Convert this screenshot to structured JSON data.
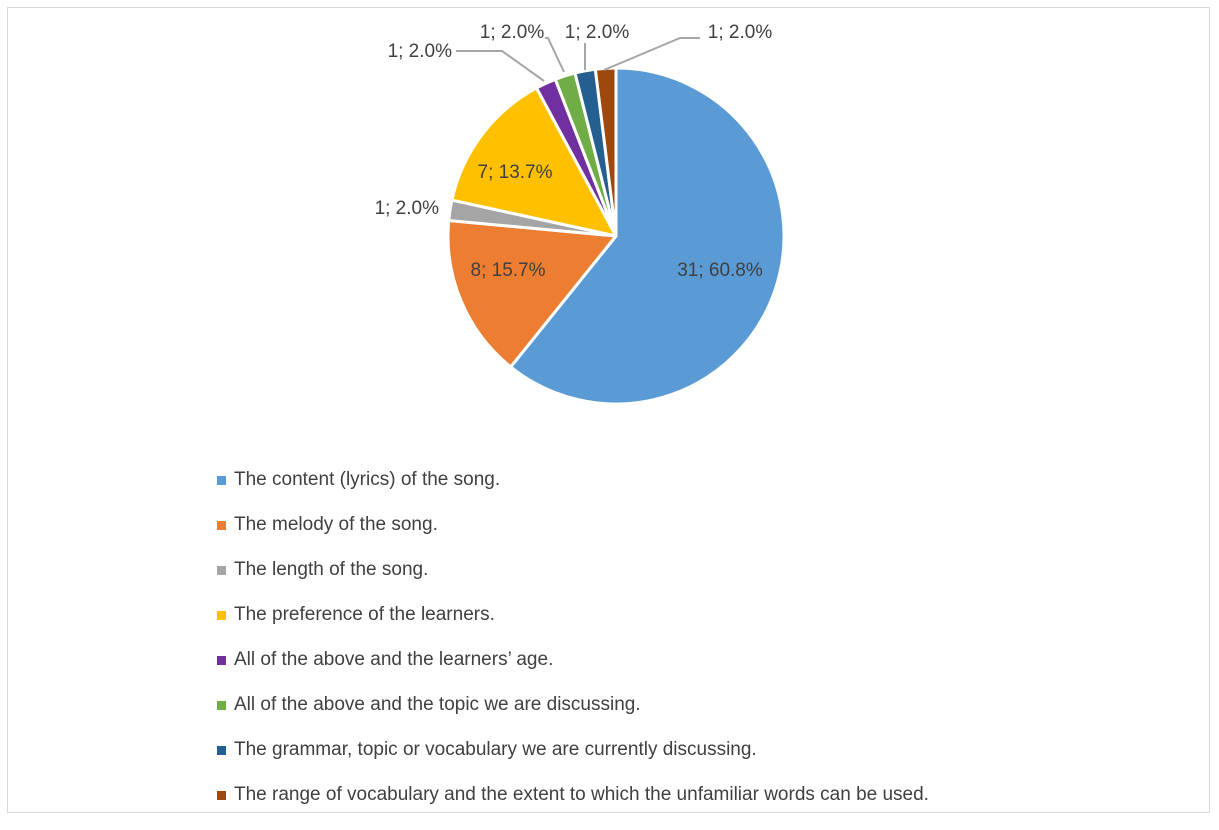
{
  "chart_data": {
    "type": "pie",
    "title": "",
    "legend_position": "bottom",
    "data_label_format": "value; percent",
    "slices": [
      {
        "label": "The content (lyrics) of the song.",
        "value": 31,
        "percent": "60.8%",
        "data_label": "31; 60.8%",
        "color": "#5b9bd5"
      },
      {
        "label": "The melody of the song.",
        "value": 8,
        "percent": "15.7%",
        "data_label": "8; 15.7%",
        "color": "#ed7d31"
      },
      {
        "label": "The length of the song.",
        "value": 1,
        "percent": "2.0%",
        "data_label": "1; 2.0%",
        "color": "#a5a5a5"
      },
      {
        "label": "The preference of the learners.",
        "value": 7,
        "percent": "13.7%",
        "data_label": "7; 13.7%",
        "color": "#ffc000"
      },
      {
        "label": "All of the above and the learners’ age.",
        "value": 1,
        "percent": "2.0%",
        "data_label": "1; 2.0%",
        "color": "#7030a0"
      },
      {
        "label": "All of the above and the topic we are discussing.",
        "value": 1,
        "percent": "2.0%",
        "data_label": "1; 2.0%",
        "color": "#70ad47"
      },
      {
        "label": "The grammar, topic or vocabulary we are currently discussing.",
        "value": 1,
        "percent": "2.0%",
        "data_label": "1; 2.0%",
        "color": "#255e91"
      },
      {
        "label": "The range of vocabulary and the extent to which the unfamiliar words can be used.",
        "value": 1,
        "percent": "2.0%",
        "data_label": "1; 2.0%",
        "color": "#9e480e"
      }
    ]
  }
}
